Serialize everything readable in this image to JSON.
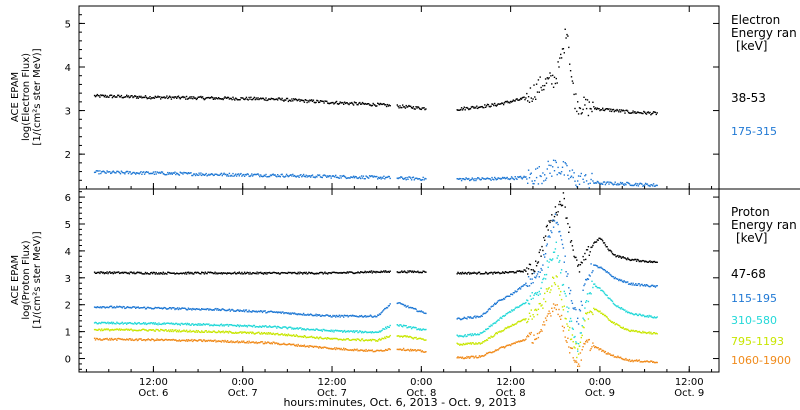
{
  "colors": {
    "e_38_53": "#000000",
    "e_175_315": "#1f78d4",
    "p_47_68": "#000000",
    "p_115_195": "#1f78d4",
    "p_310_580": "#22d8d8",
    "p_795_1193": "#c8e600",
    "p_1060_1900": "#f08a1a"
  },
  "panels": {
    "electron": {
      "ylabel": [
        "ACE EPAM",
        "log(Electron Flux)",
        "[1/(cm²s ster MeV)]"
      ],
      "legend_title": [
        "Electron",
        "Energy ran"
      ],
      "legend_unit": "[keV]"
    },
    "proton": {
      "ylabel": [
        "ACE EPAM",
        "log(Proton Flux)",
        "[1/(cm²s ster MeV)]"
      ],
      "legend_title": [
        "Proton",
        "Energy ran"
      ],
      "legend_unit": "[keV]"
    }
  },
  "xaxis": {
    "title": "hours:minutes, Oct.  6, 2013 - Oct.  9, 2013",
    "ticks": [
      {
        "hour": 12,
        "time": "12:00",
        "day": "Oct. 6"
      },
      {
        "hour": 24,
        "time": "0:00",
        "day": "Oct. 7"
      },
      {
        "hour": 36,
        "time": "12:00",
        "day": "Oct. 7"
      },
      {
        "hour": 48,
        "time": "0:00",
        "day": "Oct. 8"
      },
      {
        "hour": 60,
        "time": "12:00",
        "day": "Oct. 8"
      },
      {
        "hour": 72,
        "time": "0:00",
        "day": "Oct. 9"
      },
      {
        "hour": 84,
        "time": "12:00",
        "day": "Oct. 9"
      }
    ]
  },
  "chart_data": [
    {
      "type": "scatter",
      "panel": "electron",
      "ylabel": "ACE EPAM log(Electron Flux) [1/(cm²s ster MeV)]",
      "xlabel": "hours:minutes, Oct.  6, 2013 - Oct.  9, 2013",
      "xlim_hours": [
        2,
        88
      ],
      "ylim": [
        1.2,
        5.4
      ],
      "yticks": [
        2,
        3,
        4,
        5
      ],
      "data_gaps_hours": [
        [
          43.8,
          44.6
        ],
        [
          48.6,
          52.6
        ]
      ],
      "series": [
        {
          "name": "38-53",
          "color_key": "e_38_53",
          "x": [
            4,
            12,
            20,
            28,
            36,
            42,
            46,
            48,
            53,
            58,
            62,
            64,
            66,
            67,
            67.5,
            68,
            68.5,
            69,
            70,
            72,
            76,
            79.5
          ],
          "y": [
            3.35,
            3.32,
            3.3,
            3.28,
            3.2,
            3.15,
            3.1,
            3.07,
            3.05,
            3.15,
            3.3,
            3.6,
            3.75,
            4.4,
            5.0,
            3.9,
            3.3,
            3.15,
            3.1,
            3.05,
            2.98,
            2.95
          ]
        },
        {
          "name": "175-315",
          "color_key": "e_175_315",
          "x": [
            4,
            12,
            20,
            28,
            36,
            42,
            46,
            48,
            53,
            58,
            62,
            64,
            66,
            67,
            68,
            69,
            70,
            72,
            76,
            79.5
          ],
          "y": [
            1.6,
            1.58,
            1.55,
            1.53,
            1.5,
            1.48,
            1.46,
            1.45,
            1.44,
            1.45,
            1.48,
            1.55,
            1.75,
            1.65,
            1.5,
            1.42,
            1.38,
            1.35,
            1.33,
            1.3
          ]
        }
      ]
    },
    {
      "type": "scatter",
      "panel": "proton",
      "ylabel": "ACE EPAM log(Proton Flux) [1/(cm²s ster MeV)]",
      "xlabel": "hours:minutes, Oct.  6, 2013 - Oct.  9, 2013",
      "xlim_hours": [
        2,
        88
      ],
      "ylim": [
        -0.5,
        6.3
      ],
      "yticks": [
        0,
        1,
        2,
        3,
        4,
        5,
        6
      ],
      "data_gaps_hours": [
        [
          43.8,
          44.6
        ],
        [
          48.6,
          52.6
        ]
      ],
      "series": [
        {
          "name": "47-68",
          "color_key": "p_47_68",
          "x": [
            4,
            12,
            20,
            28,
            36,
            42,
            48,
            53,
            58,
            61,
            63,
            64,
            65,
            66,
            67,
            68,
            69,
            70,
            71,
            72,
            73,
            74,
            76,
            79.5
          ],
          "y": [
            3.22,
            3.2,
            3.2,
            3.2,
            3.2,
            3.25,
            3.25,
            3.2,
            3.2,
            3.25,
            3.35,
            4.0,
            5.0,
            5.5,
            6.0,
            4.5,
            3.3,
            3.8,
            4.3,
            4.5,
            4.1,
            3.85,
            3.7,
            3.6
          ]
        },
        {
          "name": "115-195",
          "color_key": "p_115_195",
          "x": [
            4,
            12,
            20,
            28,
            36,
            42,
            44.2,
            48,
            53,
            56,
            58,
            60,
            62,
            64,
            65,
            66,
            67,
            68,
            69,
            70,
            71,
            72,
            73,
            74,
            76,
            79.5
          ],
          "y": [
            1.95,
            1.9,
            1.85,
            1.75,
            1.6,
            1.6,
            2.15,
            1.75,
            1.5,
            1.6,
            2.1,
            2.4,
            2.8,
            3.2,
            4.6,
            5.3,
            4.0,
            2.4,
            1.4,
            2.9,
            3.5,
            3.4,
            3.2,
            3.0,
            2.8,
            2.7
          ]
        },
        {
          "name": "310-580",
          "color_key": "p_310_580",
          "x": [
            4,
            12,
            20,
            28,
            36,
            42,
            44.2,
            48,
            53,
            56,
            58,
            60,
            62,
            64,
            65,
            66,
            67,
            68,
            69,
            70,
            71,
            72,
            73,
            74,
            76,
            79.5
          ],
          "y": [
            1.35,
            1.32,
            1.28,
            1.2,
            1.05,
            1.0,
            1.3,
            1.1,
            0.85,
            0.95,
            1.4,
            1.8,
            2.1,
            2.6,
            3.6,
            4.2,
            2.8,
            1.4,
            0.4,
            2.1,
            2.8,
            2.6,
            2.3,
            2.0,
            1.7,
            1.55
          ]
        },
        {
          "name": "795-1193",
          "color_key": "p_795_1193",
          "x": [
            4,
            12,
            20,
            28,
            36,
            42,
            44.2,
            48,
            53,
            56,
            58,
            60,
            62,
            64,
            65,
            66,
            67,
            68,
            69,
            70,
            71,
            72,
            73,
            74,
            76,
            79.5
          ],
          "y": [
            1.1,
            1.08,
            1.02,
            0.95,
            0.75,
            0.7,
            0.9,
            0.75,
            0.55,
            0.6,
            0.95,
            1.25,
            1.5,
            1.9,
            2.6,
            3.0,
            2.0,
            0.9,
            0.1,
            1.5,
            1.9,
            1.75,
            1.5,
            1.3,
            1.05,
            0.95
          ]
        },
        {
          "name": "1060-1900",
          "color_key": "p_1060_1900",
          "x": [
            4,
            12,
            20,
            28,
            36,
            42,
            44.2,
            48,
            53,
            56,
            58,
            60,
            62,
            64,
            65,
            66,
            67,
            68,
            69,
            70,
            71,
            72,
            73,
            74,
            76,
            79.5
          ],
          "y": [
            0.75,
            0.72,
            0.68,
            0.6,
            0.4,
            0.3,
            0.4,
            0.3,
            0.05,
            0.1,
            0.35,
            0.55,
            0.75,
            0.9,
            1.7,
            2.1,
            1.2,
            0.3,
            -0.2,
            0.6,
            0.5,
            0.35,
            0.2,
            0.1,
            -0.05,
            -0.1
          ]
        }
      ]
    }
  ]
}
